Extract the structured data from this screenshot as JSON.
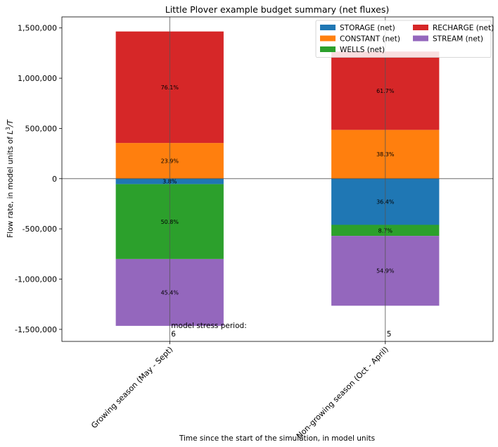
{
  "chart_data": {
    "type": "bar",
    "stacked": true,
    "title": "Little Plover example budget summary (net fluxes)",
    "xlabel": "Time since the start of the simulation, in model units",
    "ylabel_prefix": "Flow rate, in model units of ",
    "ylabel_math": "L",
    "ylabel_sup": "3",
    "ylabel_suffix": "/T",
    "ylim": [
      -1620000,
      1610000
    ],
    "yticks": [
      1500000,
      1000000,
      500000,
      0,
      -500000,
      -1000000,
      -1500000
    ],
    "ytick_labels": [
      "1,500,000",
      "1,000,000",
      "500,000",
      "0",
      "-500,000",
      "-1,000,000",
      "-1,500,000"
    ],
    "categories": [
      "Growing season (May - Sept)",
      "Non-growing season (Oct - April)"
    ],
    "series": [
      {
        "name": "STORAGE (net)",
        "color": "#1f77b4",
        "values": [
          -55000,
          -460000
        ],
        "labels": [
          "3.8%",
          "36.4%"
        ]
      },
      {
        "name": "CONSTANT (net)",
        "color": "#ff7f0e",
        "values": [
          355000,
          485000
        ],
        "labels": [
          "23.9%",
          "38.3%"
        ]
      },
      {
        "name": "WELLS (net)",
        "color": "#2ca02c",
        "values": [
          -745000,
          -110000
        ],
        "labels": [
          "50.8%",
          "8.7%"
        ]
      },
      {
        "name": "RECHARGE (net)",
        "color": "#d62728",
        "values": [
          1110000,
          780000
        ],
        "labels": [
          "76.1%",
          "61.7%"
        ]
      },
      {
        "name": "STREAM (net)",
        "color": "#9467bd",
        "values": [
          -665000,
          -695000
        ],
        "labels": [
          "45.4%",
          "54.9%"
        ]
      }
    ],
    "stack_order": [
      "STORAGE (net)",
      "WELLS (net)",
      "STREAM (net)",
      "CONSTANT (net)",
      "RECHARGE (net)"
    ],
    "legend": {
      "placement": "top-right",
      "columns": 2,
      "order": [
        "STORAGE (net)",
        "CONSTANT (net)",
        "WELLS (net)",
        "RECHARGE (net)",
        "STREAM (net)"
      ]
    },
    "stress_period_label": "model stress period:",
    "stress_periods": [
      "6",
      "5"
    ],
    "grid": false
  }
}
